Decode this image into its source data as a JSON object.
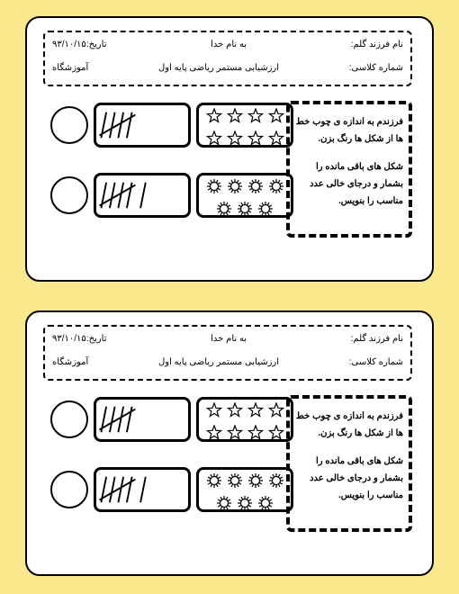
{
  "header": {
    "child_name_lbl": "نام فرزند گلم:",
    "bismillah": "به نام خدا",
    "date_lbl": "تاریخ:",
    "date_val": "۹۳/۱۰/۱۵",
    "class_num_lbl": "شماره کلاسی:",
    "eval_lbl": "ارزشیابی مستمر ریاضی پایه اول",
    "school_lbl": "آموزشگاه"
  },
  "instructions": {
    "p1": "فرزندم به اندازه ی چوب خط ها از شکل ها رنگ بزن.",
    "p2": "شکل های باقی مانده را بشمار و درجای خالی عدد مناسب را بنویس."
  },
  "rows": [
    {
      "tally": 5,
      "stars": {
        "r1": 4,
        "r2": 4
      },
      "star_kind": "star5"
    },
    {
      "tally": 6,
      "stars": {
        "r1": 4,
        "r2": 3
      },
      "star_kind": "sun"
    }
  ],
  "style": {
    "bg": "#fae98c",
    "paper": "#ffffff",
    "border": "#000000",
    "star_size": 18,
    "tally_stroke": "#000000",
    "tally_width": 2
  }
}
